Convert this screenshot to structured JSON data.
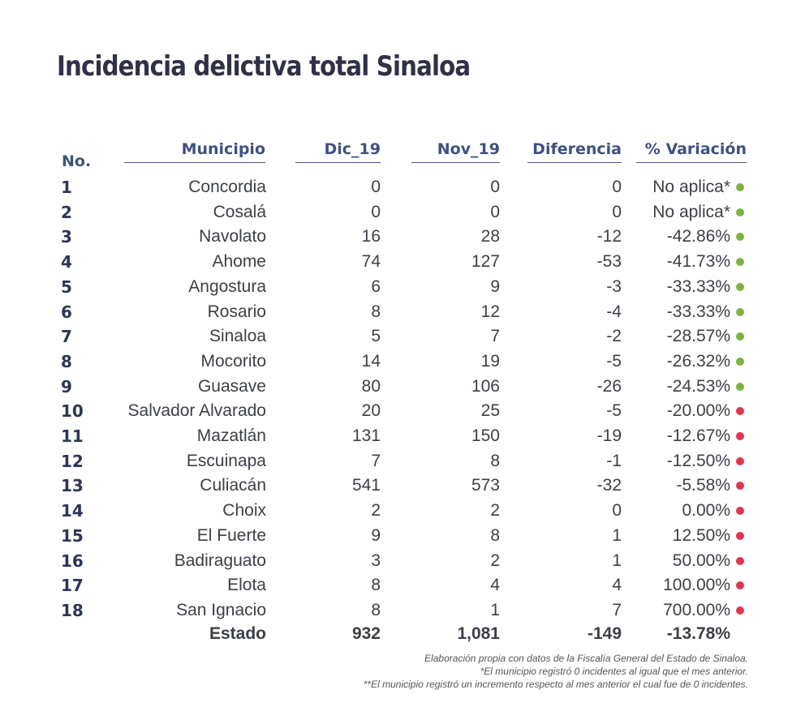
{
  "title": "Incidencia delictiva total Sinaloa",
  "headers": {
    "no": "No.",
    "municipio": "Municipio",
    "dic": "Dic_19",
    "nov": "Nov_19",
    "diferencia": "Diferencia",
    "variacion": "% Variación"
  },
  "colors": {
    "decrease": "#7cb342",
    "increase": "#e0344f",
    "header": "#3f5180"
  },
  "rows": [
    {
      "no": "1",
      "municipio": "Concordia",
      "dic": "0",
      "nov": "0",
      "dif": "0",
      "pct": "No aplica*",
      "status": "decrease"
    },
    {
      "no": "2",
      "municipio": "Cosalá",
      "dic": "0",
      "nov": "0",
      "dif": "0",
      "pct": "No aplica*",
      "status": "decrease"
    },
    {
      "no": "3",
      "municipio": "Navolato",
      "dic": "16",
      "nov": "28",
      "dif": "-12",
      "pct": "-42.86%",
      "status": "decrease"
    },
    {
      "no": "4",
      "municipio": "Ahome",
      "dic": "74",
      "nov": "127",
      "dif": "-53",
      "pct": "-41.73%",
      "status": "decrease"
    },
    {
      "no": "5",
      "municipio": "Angostura",
      "dic": "6",
      "nov": "9",
      "dif": "-3",
      "pct": "-33.33%",
      "status": "decrease"
    },
    {
      "no": "6",
      "municipio": "Rosario",
      "dic": "8",
      "nov": "12",
      "dif": "-4",
      "pct": "-33.33%",
      "status": "decrease"
    },
    {
      "no": "7",
      "municipio": "Sinaloa",
      "dic": "5",
      "nov": "7",
      "dif": "-2",
      "pct": "-28.57%",
      "status": "decrease"
    },
    {
      "no": "8",
      "municipio": "Mocorito",
      "dic": "14",
      "nov": "19",
      "dif": "-5",
      "pct": "-26.32%",
      "status": "decrease"
    },
    {
      "no": "9",
      "municipio": "Guasave",
      "dic": "80",
      "nov": "106",
      "dif": "-26",
      "pct": "-24.53%",
      "status": "decrease"
    },
    {
      "no": "10",
      "municipio": "Salvador Alvarado",
      "dic": "20",
      "nov": "25",
      "dif": "-5",
      "pct": "-20.00%",
      "status": "increase"
    },
    {
      "no": "11",
      "municipio": "Mazatlán",
      "dic": "131",
      "nov": "150",
      "dif": "-19",
      "pct": "-12.67%",
      "status": "increase"
    },
    {
      "no": "12",
      "municipio": "Escuinapa",
      "dic": "7",
      "nov": "8",
      "dif": "-1",
      "pct": "-12.50%",
      "status": "increase"
    },
    {
      "no": "13",
      "municipio": "Culiacán",
      "dic": "541",
      "nov": "573",
      "dif": "-32",
      "pct": "-5.58%",
      "status": "increase"
    },
    {
      "no": "14",
      "municipio": "Choix",
      "dic": "2",
      "nov": "2",
      "dif": "0",
      "pct": "0.00%",
      "status": "increase"
    },
    {
      "no": "15",
      "municipio": "El Fuerte",
      "dic": "9",
      "nov": "8",
      "dif": "1",
      "pct": "12.50%",
      "status": "increase"
    },
    {
      "no": "16",
      "municipio": "Badiraguato",
      "dic": "3",
      "nov": "2",
      "dif": "1",
      "pct": "50.00%",
      "status": "increase"
    },
    {
      "no": "17",
      "municipio": "Elota",
      "dic": "8",
      "nov": "4",
      "dif": "4",
      "pct": "100.00%",
      "status": "increase"
    },
    {
      "no": "18",
      "municipio": "San Ignacio",
      "dic": "8",
      "nov": "1",
      "dif": "7",
      "pct": "700.00%",
      "status": "increase"
    }
  ],
  "total": {
    "label": "Estado",
    "dic": "932",
    "nov": "1,081",
    "dif": "-149",
    "pct": "-13.78%"
  },
  "notes": [
    "Elaboración propia con datos de la Fiscalía General del Estado de Sinaloa.",
    "*El municipio registró 0 incidentes al igual que el mes anterior.",
    "**El municipio registró un incremento respecto al mes anterior el cual fue de 0 incidentes."
  ]
}
